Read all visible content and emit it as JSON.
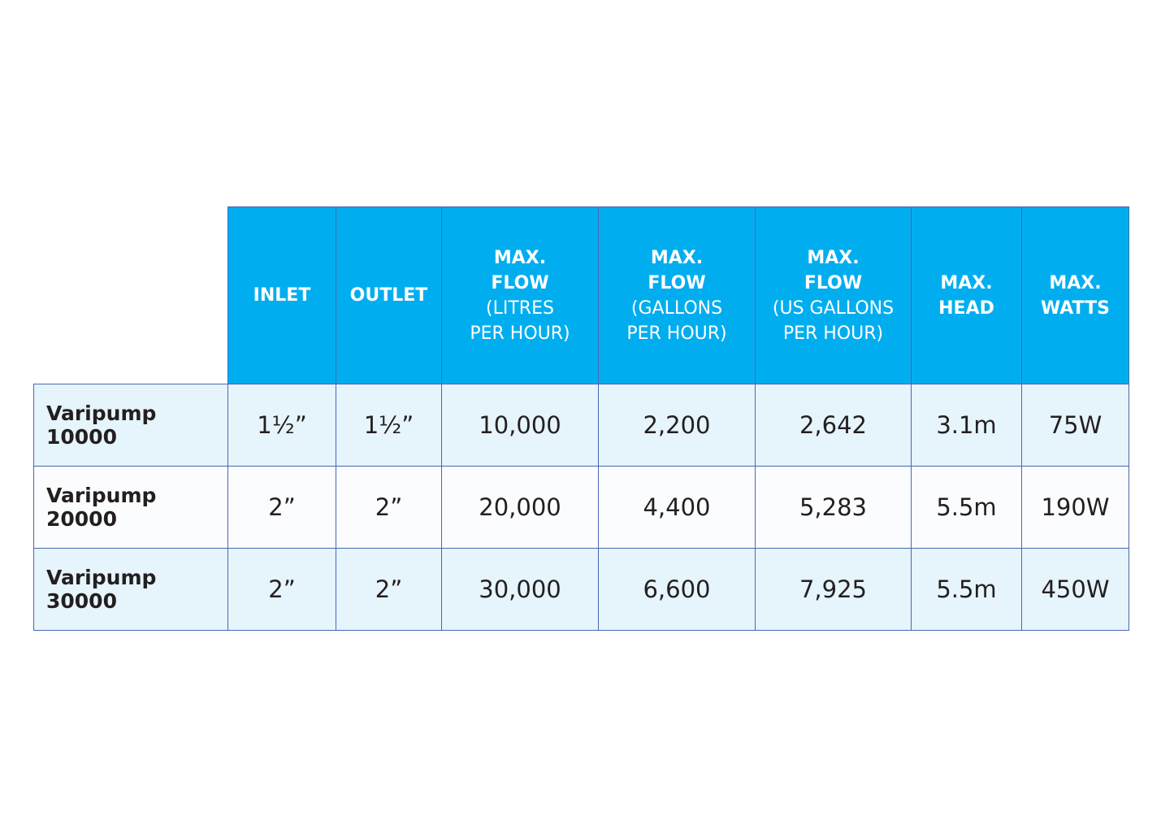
{
  "table": {
    "columns": [
      {
        "bold_lines": [
          "INLET"
        ]
      },
      {
        "bold_lines": [
          "OUTLET"
        ]
      },
      {
        "bold_lines": [
          "MAX.",
          "FLOW"
        ],
        "sub_lines": [
          "(LITRES",
          "PER HOUR)"
        ]
      },
      {
        "bold_lines": [
          "MAX.",
          "FLOW"
        ],
        "sub_lines": [
          "(GALLONS",
          "PER HOUR)"
        ]
      },
      {
        "bold_lines": [
          "MAX.",
          "FLOW"
        ],
        "sub_lines": [
          "(US GALLONS",
          "PER HOUR)"
        ]
      },
      {
        "bold_lines": [
          "MAX.",
          "HEAD"
        ]
      },
      {
        "bold_lines": [
          "MAX.",
          "WATTS"
        ]
      }
    ],
    "rows": [
      {
        "name": "Varipump 10000",
        "cells": [
          "1½”",
          "1½”",
          "10,000",
          "2,200",
          "2,642",
          "3.1m",
          "75W"
        ]
      },
      {
        "name": "Varipump 20000",
        "cells": [
          "2”",
          "2”",
          "20,000",
          "4,400",
          "5,283",
          "5.5m",
          "190W"
        ]
      },
      {
        "name": "Varipump 30000",
        "cells": [
          "2”",
          "2”",
          "30,000",
          "6,600",
          "7,925",
          "5.5m",
          "450W"
        ]
      }
    ]
  }
}
